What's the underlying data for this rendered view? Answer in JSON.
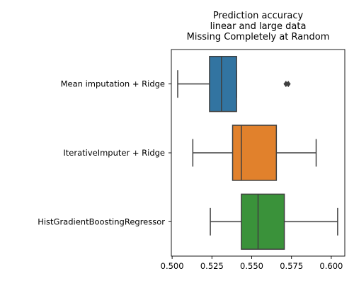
{
  "chart_data": {
    "type": "boxplot",
    "orientation": "horizontal",
    "title": [
      "Prediction accuracy",
      "linear and large data",
      "Missing Completely at Random"
    ],
    "xlabel": "",
    "ylabel": "",
    "xlim": [
      0.4995,
      0.6085
    ],
    "x_ticks": [
      0.5,
      0.525,
      0.55,
      0.575,
      0.6
    ],
    "x_tick_labels": [
      "0.500",
      "0.525",
      "0.550",
      "0.575",
      "0.600"
    ],
    "grid": false,
    "categories": [
      "Mean imputation + Ridge",
      "IterativeImputer + Ridge",
      "HistGradientBoostingRegressor"
    ],
    "series": [
      {
        "category": "Mean imputation + Ridge",
        "color": "#3274a1",
        "whisker_low": 0.5035,
        "q1": 0.5235,
        "median": 0.531,
        "q3": 0.5405,
        "whisker_high": 0.5405,
        "outliers": [
          0.5715,
          0.573
        ]
      },
      {
        "category": "IterativeImputer + Ridge",
        "color": "#e1812c",
        "whisker_low": 0.513,
        "q1": 0.538,
        "median": 0.5435,
        "q3": 0.5655,
        "whisker_high": 0.5905,
        "outliers": []
      },
      {
        "category": "HistGradientBoostingRegressor",
        "color": "#3a923a",
        "whisker_low": 0.524,
        "q1": 0.5435,
        "median": 0.554,
        "q3": 0.5705,
        "whisker_high": 0.604,
        "outliers": []
      }
    ]
  }
}
